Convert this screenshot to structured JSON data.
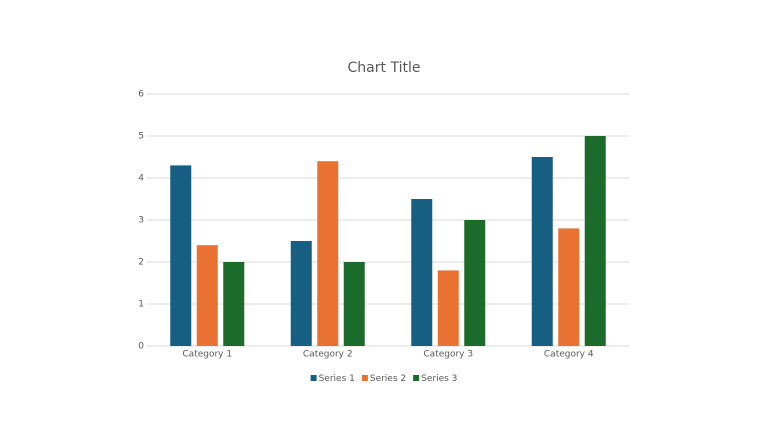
{
  "chart_data": {
    "type": "bar",
    "title": "Chart Title",
    "categories": [
      "Category 1",
      "Category 2",
      "Category 3",
      "Category 4"
    ],
    "series": [
      {
        "name": "Series 1",
        "color": "#175f82",
        "values": [
          4.3,
          2.5,
          3.5,
          4.5
        ]
      },
      {
        "name": "Series 2",
        "color": "#e97132",
        "values": [
          2.4,
          4.4,
          1.8,
          2.8
        ]
      },
      {
        "name": "Series 3",
        "color": "#1b6b2b",
        "values": [
          2,
          2,
          3,
          5
        ]
      }
    ],
    "ylim": [
      0,
      6
    ],
    "yticks": [
      0,
      1,
      2,
      3,
      4,
      5,
      6
    ],
    "grid": true,
    "legend": "bottom"
  }
}
